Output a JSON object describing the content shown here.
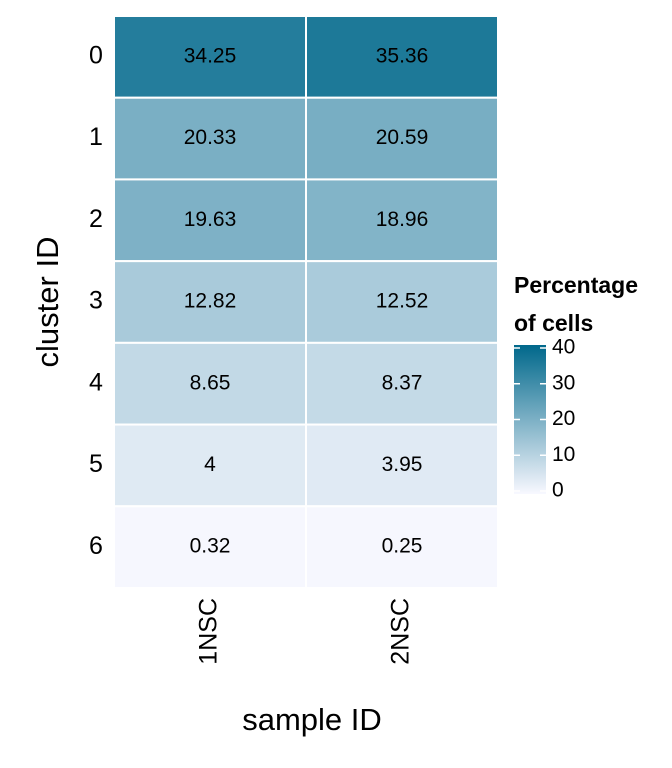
{
  "chart_data": {
    "type": "heatmap",
    "x_label": "sample ID",
    "y_label": "cluster ID",
    "x_categories": [
      "1NSC",
      "2NSC"
    ],
    "y_categories": [
      "0",
      "1",
      "2",
      "3",
      "4",
      "5",
      "6"
    ],
    "values": [
      [
        34.25,
        35.36
      ],
      [
        20.33,
        20.59
      ],
      [
        19.63,
        18.96
      ],
      [
        12.82,
        12.52
      ],
      [
        8.65,
        8.37
      ],
      [
        4,
        3.95
      ],
      [
        0.32,
        0.25
      ]
    ],
    "legend_title": "Percentage of cells",
    "color_low": "#f8f8ff",
    "color_high": "#00688b",
    "clim": [
      0,
      40
    ],
    "cticks": [
      0,
      10,
      20,
      30,
      40
    ]
  }
}
